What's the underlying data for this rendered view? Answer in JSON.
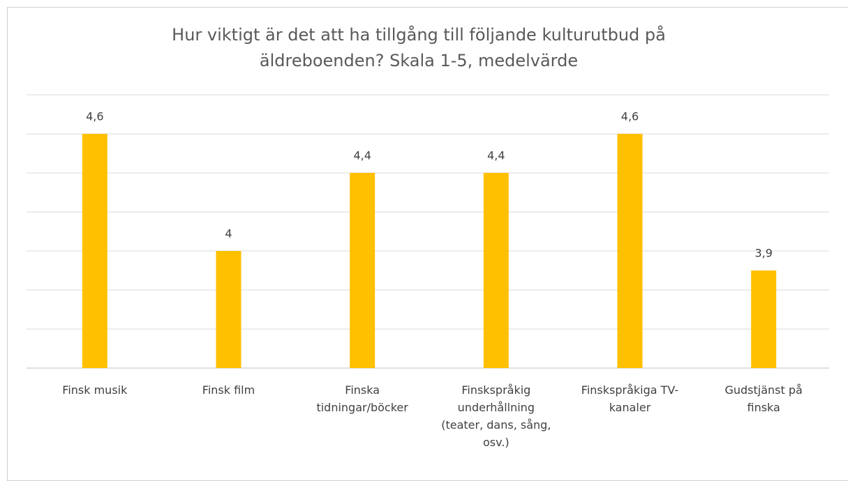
{
  "chart_data": {
    "type": "bar",
    "title": "Hur viktigt är det att ha tillgång till följande kulturutbud på äldreboenden? Skala 1-5, medelvärde",
    "categories": [
      "Finsk musik",
      "Finsk film",
      "Finska tidningar/böcker",
      "Finskspråkig underhållning (teater, dans, sång, osv.)",
      "Finskspråkiga TV-kanaler",
      "Gudstjänst på finska"
    ],
    "values": [
      4.6,
      4,
      4.4,
      4.4,
      4.6,
      3.9
    ],
    "value_labels": [
      "4,6",
      "4",
      "4,4",
      "4,4",
      "4,6",
      "3,9"
    ],
    "color": "#ffc000",
    "ylim": [
      3.4,
      4.8
    ],
    "yticks": [
      3.4,
      3.6,
      3.8,
      4,
      4.2,
      4.4,
      4.6,
      4.8
    ],
    "grid": true
  }
}
